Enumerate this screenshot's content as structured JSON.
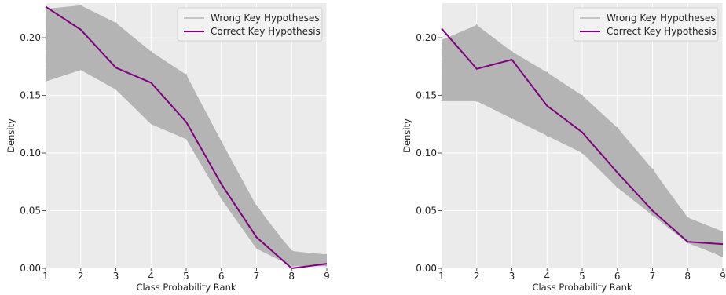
{
  "chart_data": [
    {
      "type": "line",
      "title": "",
      "xlabel": "Class Probability Rank",
      "ylabel": "Density",
      "xlim": [
        1,
        9
      ],
      "ylim": [
        0,
        0.23
      ],
      "xticks": [
        1,
        2,
        3,
        4,
        5,
        6,
        7,
        8,
        9
      ],
      "xtick_labels": [
        "1",
        "2",
        "3",
        "4",
        "5",
        "6",
        "7",
        "8",
        "9"
      ],
      "yticks": [
        0,
        0.05,
        0.1,
        0.15,
        0.2
      ],
      "ytick_labels": [
        "0.00",
        "0.05",
        "0.10",
        "0.15",
        "0.20"
      ],
      "grid": true,
      "legend_position": "top-right",
      "x": [
        1,
        2,
        3,
        4,
        5,
        6,
        7,
        8,
        9
      ],
      "series": [
        {
          "name": "Correct Key Hypothesis",
          "color": "#800080",
          "values": [
            0.227,
            0.207,
            0.174,
            0.161,
            0.127,
            0.073,
            0.027,
            0.0,
            0.004
          ]
        }
      ],
      "band": {
        "name": "Wrong Key Hypotheses",
        "color": "#b4b4b4",
        "lower": [
          0.162,
          0.172,
          0.155,
          0.125,
          0.112,
          0.06,
          0.017,
          0.002,
          0.002
        ],
        "upper": [
          0.225,
          0.228,
          0.213,
          0.188,
          0.168,
          0.11,
          0.054,
          0.015,
          0.012
        ],
        "curves": [
          [
            0.162,
            0.2,
            0.17,
            0.15,
            0.12,
            0.07,
            0.03,
            0.005,
            0.004
          ],
          [
            0.2,
            0.228,
            0.19,
            0.14,
            0.13,
            0.08,
            0.04,
            0.01,
            0.01
          ],
          [
            0.218,
            0.185,
            0.213,
            0.17,
            0.14,
            0.09,
            0.02,
            0.003,
            0.006
          ],
          [
            0.175,
            0.205,
            0.16,
            0.188,
            0.115,
            0.1,
            0.05,
            0.015,
            0.003
          ],
          [
            0.21,
            0.19,
            0.2,
            0.13,
            0.168,
            0.065,
            0.035,
            0.006,
            0.012
          ],
          [
            0.185,
            0.215,
            0.18,
            0.16,
            0.125,
            0.11,
            0.025,
            0.008,
            0.008
          ],
          [
            0.225,
            0.175,
            0.165,
            0.175,
            0.15,
            0.075,
            0.045,
            0.002,
            0.005
          ],
          [
            0.19,
            0.21,
            0.205,
            0.128,
            0.14,
            0.085,
            0.054,
            0.012,
            0.002
          ]
        ]
      },
      "legend": [
        "Wrong Key Hypotheses",
        "Correct Key Hypothesis"
      ]
    },
    {
      "type": "line",
      "title": "",
      "xlabel": "Class Probability Rank",
      "ylabel": "Density",
      "xlim": [
        1,
        9
      ],
      "ylim": [
        0,
        0.23
      ],
      "xticks": [
        1,
        2,
        3,
        4,
        5,
        6,
        7,
        8,
        9
      ],
      "xtick_labels": [
        "1",
        "2",
        "3",
        "4",
        "5",
        "6",
        "7",
        "8",
        "9"
      ],
      "yticks": [
        0,
        0.05,
        0.1,
        0.15,
        0.2
      ],
      "ytick_labels": [
        "0.00",
        "0.05",
        "0.10",
        "0.15",
        "0.20"
      ],
      "grid": true,
      "legend_position": "top-right",
      "x": [
        1,
        2,
        3,
        4,
        5,
        6,
        7,
        8,
        9
      ],
      "series": [
        {
          "name": "Correct Key Hypothesis",
          "color": "#800080",
          "values": [
            0.208,
            0.173,
            0.181,
            0.141,
            0.118,
            0.083,
            0.05,
            0.023,
            0.021
          ]
        }
      ],
      "band": {
        "name": "Wrong Key Hypotheses",
        "color": "#b4b4b4",
        "lower": [
          0.145,
          0.145,
          0.13,
          0.115,
          0.1,
          0.07,
          0.046,
          0.022,
          0.01
        ],
        "upper": [
          0.198,
          0.211,
          0.188,
          0.17,
          0.15,
          0.122,
          0.086,
          0.044,
          0.032
        ],
        "curves": [
          [
            0.15,
            0.211,
            0.14,
            0.16,
            0.11,
            0.08,
            0.05,
            0.03,
            0.015
          ],
          [
            0.19,
            0.15,
            0.185,
            0.12,
            0.15,
            0.1,
            0.07,
            0.04,
            0.03
          ],
          [
            0.17,
            0.19,
            0.13,
            0.17,
            0.12,
            0.122,
            0.06,
            0.025,
            0.01
          ],
          [
            0.198,
            0.16,
            0.17,
            0.13,
            0.14,
            0.075,
            0.086,
            0.035,
            0.028
          ],
          [
            0.145,
            0.2,
            0.155,
            0.115,
            0.105,
            0.11,
            0.055,
            0.044,
            0.02
          ],
          [
            0.18,
            0.145,
            0.188,
            0.15,
            0.13,
            0.07,
            0.08,
            0.028,
            0.032
          ],
          [
            0.16,
            0.175,
            0.135,
            0.165,
            0.1,
            0.09,
            0.046,
            0.038,
            0.012
          ],
          [
            0.185,
            0.17,
            0.16,
            0.125,
            0.145,
            0.1,
            0.065,
            0.022,
            0.025
          ]
        ]
      },
      "legend": [
        "Wrong Key Hypotheses",
        "Correct Key Hypothesis"
      ]
    }
  ]
}
